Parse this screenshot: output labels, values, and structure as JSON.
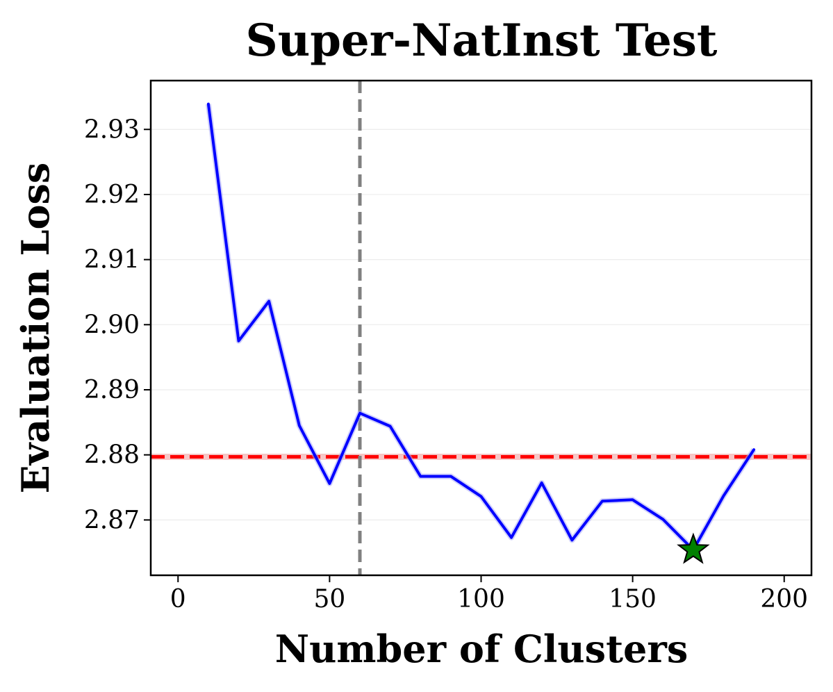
{
  "chart_data": {
    "type": "line",
    "title": "Super-NatInst Test",
    "xlabel": "Number of Clusters",
    "ylabel": "Evaluation Loss",
    "xlim": [
      -9,
      209
    ],
    "ylim": [
      2.8615,
      2.9375
    ],
    "x_ticks": [
      0,
      50,
      100,
      150,
      200
    ],
    "y_ticks": [
      2.87,
      2.88,
      2.89,
      2.9,
      2.91,
      2.92,
      2.93
    ],
    "x_tick_labels": [
      "0",
      "50",
      "100",
      "150",
      "200"
    ],
    "y_tick_labels": [
      "2.87",
      "2.88",
      "2.89",
      "2.90",
      "2.91",
      "2.92",
      "2.93"
    ],
    "grid": "horizontal",
    "series": [
      {
        "color": "#0000ff",
        "x": [
          10,
          20,
          30,
          40,
          50,
          60,
          70,
          80,
          90,
          100,
          110,
          120,
          130,
          140,
          150,
          160,
          170,
          180,
          190
        ],
        "values": [
          2.9339,
          2.8975,
          2.9036,
          2.8845,
          2.8756,
          2.8864,
          2.8844,
          2.8767,
          2.8767,
          2.8736,
          2.8673,
          2.8757,
          2.8669,
          2.8729,
          2.8731,
          2.8701,
          2.8654,
          2.8737,
          2.8808
        ]
      }
    ],
    "reference_lines": [
      {
        "orientation": "horizontal",
        "value": 2.8797,
        "color": "#ff0000",
        "style": "dashed"
      },
      {
        "orientation": "vertical",
        "value": 60,
        "color": "#808080",
        "style": "dashed"
      }
    ],
    "markers": [
      {
        "shape": "star",
        "x": 170,
        "y": 2.8654,
        "color": "#008000"
      }
    ]
  }
}
